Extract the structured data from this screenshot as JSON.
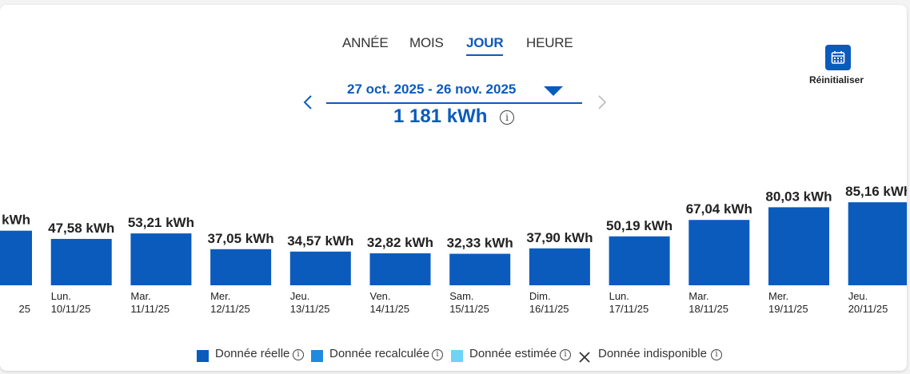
{
  "tabs": [
    {
      "label": "ANNÉE",
      "active": false
    },
    {
      "label": "MOIS",
      "active": false
    },
    {
      "label": "JOUR",
      "active": true
    },
    {
      "label": "HEURE",
      "active": false
    }
  ],
  "period": {
    "range": "27 oct. 2025 - 26 nov. 2025",
    "total": "1 181 kWh",
    "prev_icon": "chevron-left-icon",
    "next_icon": "chevron-right-icon",
    "dropdown_icon": "caret-down-icon",
    "info_glyph": "i"
  },
  "reset": {
    "label": "Réinitialiser",
    "icon": "calendar-icon"
  },
  "chart_data": {
    "type": "bar",
    "unit": "kWh",
    "color": "#0b5bbd",
    "categories": [
      {
        "day": "",
        "date": "25"
      },
      {
        "day": "Lun.",
        "date": "10/11/25"
      },
      {
        "day": "Mar.",
        "date": "11/11/25"
      },
      {
        "day": "Mer.",
        "date": "12/11/25"
      },
      {
        "day": "Jeu.",
        "date": "13/11/25"
      },
      {
        "day": "Ven.",
        "date": "14/11/25"
      },
      {
        "day": "Sam.",
        "date": "15/11/25"
      },
      {
        "day": "Dim.",
        "date": "16/11/25"
      },
      {
        "day": "Lun.",
        "date": "17/11/25"
      },
      {
        "day": "Mar.",
        "date": "18/11/25"
      },
      {
        "day": "Mer.",
        "date": "19/11/25"
      },
      {
        "day": "Jeu.",
        "date": "20/11/25"
      }
    ],
    "values": [
      null,
      47.58,
      53.21,
      37.05,
      34.57,
      32.82,
      32.33,
      37.9,
      50.19,
      67.04,
      80.03,
      85.16
    ],
    "value_labels": [
      "kWh",
      "47,58 kWh",
      "53,21 kWh",
      "37,05 kWh",
      "34,57 kWh",
      "32,82 kWh",
      "32,33 kWh",
      "37,90 kWh",
      "50,19 kWh",
      "67,04 kWh",
      "80,03 kWh",
      "85,16 kWh"
    ]
  },
  "legend": [
    {
      "label": "Donnée réelle",
      "color": "#0b5bbd",
      "marker": "square"
    },
    {
      "label": "Donnée recalculée",
      "color": "#1e8ae0",
      "marker": "square"
    },
    {
      "label": "Donnée estimée",
      "color": "#6fd3f5",
      "marker": "square"
    },
    {
      "label": "Donnée indisponible",
      "color": "#333333",
      "marker": "cross"
    }
  ]
}
